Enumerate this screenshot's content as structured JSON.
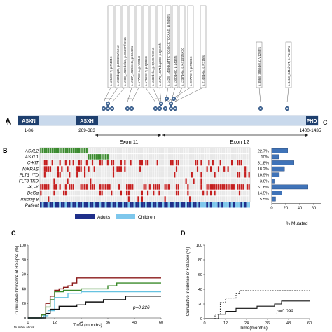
{
  "panel_a": {
    "letter": "A",
    "n_label": "N",
    "c_label": "C",
    "domains": [
      {
        "name": "ASXN",
        "range": "1-86"
      },
      {
        "name": "ASXH",
        "range": "269-383"
      },
      {
        "name": "PHD",
        "range": "1400-1435"
      }
    ],
    "exons": [
      "Exon 11",
      "Exon 12"
    ],
    "mutations": [
      "c.1210C>T, p.R404X",
      "c.1934dupG, p.G646WfsX12",
      "c.1900_1922del23, p.E635RfsX15",
      "c.1927_1928insG, p.G643fs",
      "c.1773C>A, p.Y591X",
      "c.1762C>T, p.Q588X",
      "c.1632delA, p.Q546RfsX11",
      "c.1573_1574dupGC, p.Q525fs",
      "c.1423_1439dupTTCTCGGCCTCCAAG, p.S480fs",
      "c.1300delC, p.L434fs",
      "c.1237delA, p.K413SfsX10",
      "c.2077C>T, p.R693X",
      "c.2143delA, p.R715fs",
      "c.3863_3866del, p.V1288fs",
      "c.3410_3411insT, p.P1137fs"
    ]
  },
  "panel_b": {
    "letter": "B",
    "rows": [
      "ASXL2",
      "ASXL1",
      "C-KIT",
      "N/KRAS",
      "FLT3_ITD",
      "FLT3 TKD",
      "-X, -Y",
      "Del9q",
      "Trisomy 8",
      "Patient"
    ],
    "percent_labels": [
      "22.7%",
      "10%",
      "31.8%",
      "18.2%",
      "10.9%",
      "3.6%",
      "51.8%",
      "14.5%",
      "5.5%"
    ],
    "legend": [
      "Adults",
      "Children"
    ],
    "x_ticks": [
      "0",
      "20",
      "40",
      "60"
    ],
    "xlabel": "% Mutated"
  },
  "panel_c": {
    "letter": "C",
    "ylabel": "Cumulative Incidence of Relapse (%)",
    "xlabel": "Time (months)",
    "y_ticks": [
      "0",
      "20",
      "40",
      "60",
      "80",
      "100"
    ],
    "x_ticks": [
      "0",
      "12",
      "24",
      "36",
      "48",
      "60"
    ],
    "pvalue": "p=0.226",
    "risk_label": "Number at risk"
  },
  "panel_d": {
    "letter": "D",
    "ylabel": "Cumulative Incidence of Relapse (%)",
    "xlabel": "Time(months)",
    "y_ticks": [
      "0",
      "20",
      "40",
      "60",
      "80",
      "100"
    ],
    "x_ticks": [
      "0",
      "12",
      "24",
      "36",
      "48",
      "60"
    ],
    "pvalue": "p=0.099"
  },
  "chart_data": [
    {
      "type": "bar",
      "categories": [
        "ASXL2",
        "ASXL1",
        "C-KIT",
        "N/KRAS",
        "FLT3_ITD",
        "FLT3 TKD",
        "-X, -Y",
        "Del9q",
        "Trisomy 8"
      ],
      "values": [
        22.7,
        10,
        31.8,
        18.2,
        10.9,
        3.6,
        51.8,
        14.5,
        5.5
      ],
      "xlabel": "% Mutated",
      "xlim": [
        0,
        70
      ],
      "orientation": "horizontal"
    },
    {
      "type": "line",
      "xlabel": "Time (months)",
      "ylabel": "Cumulative Incidence of Relapse (%)",
      "xlim": [
        0,
        60
      ],
      "ylim": [
        0,
        100
      ],
      "series": [
        {
          "color": "#8b1a1a",
          "x": [
            0,
            6,
            8,
            10,
            12,
            14,
            16,
            18,
            20,
            22,
            24,
            60
          ],
          "y": [
            0,
            5,
            20,
            30,
            38,
            40,
            42,
            44,
            48,
            55,
            55,
            55
          ]
        },
        {
          "color": "#3a8a2a",
          "x": [
            0,
            6,
            8,
            10,
            12,
            16,
            24,
            34,
            36,
            40,
            60
          ],
          "y": [
            0,
            4,
            15,
            25,
            36,
            38,
            40,
            40,
            44,
            48,
            48
          ]
        },
        {
          "color": "#66c2e0",
          "x": [
            0,
            7,
            9,
            12,
            18,
            24,
            36,
            60
          ],
          "y": [
            0,
            3,
            10,
            28,
            34,
            36,
            36,
            36
          ]
        },
        {
          "color": "#111111",
          "x": [
            0,
            8,
            10,
            14,
            22,
            26,
            34,
            40,
            44,
            60
          ],
          "y": [
            0,
            6,
            12,
            16,
            18,
            22,
            25,
            25,
            30,
            30
          ]
        }
      ]
    },
    {
      "type": "line",
      "xlabel": "Time(months)",
      "ylabel": "Cumulative Incidence of Relapse (%)",
      "xlim": [
        0,
        60
      ],
      "ylim": [
        0,
        100
      ],
      "series": [
        {
          "color": "#333333",
          "dash": true,
          "x": [
            0,
            6,
            9,
            12,
            18,
            20,
            24,
            60
          ],
          "y": [
            0,
            6,
            22,
            28,
            34,
            38,
            38,
            38
          ]
        },
        {
          "color": "#111111",
          "dash": false,
          "x": [
            0,
            8,
            12,
            18,
            30,
            40,
            44,
            60
          ],
          "y": [
            0,
            6,
            10,
            14,
            17,
            20,
            24,
            24
          ]
        }
      ]
    }
  ]
}
